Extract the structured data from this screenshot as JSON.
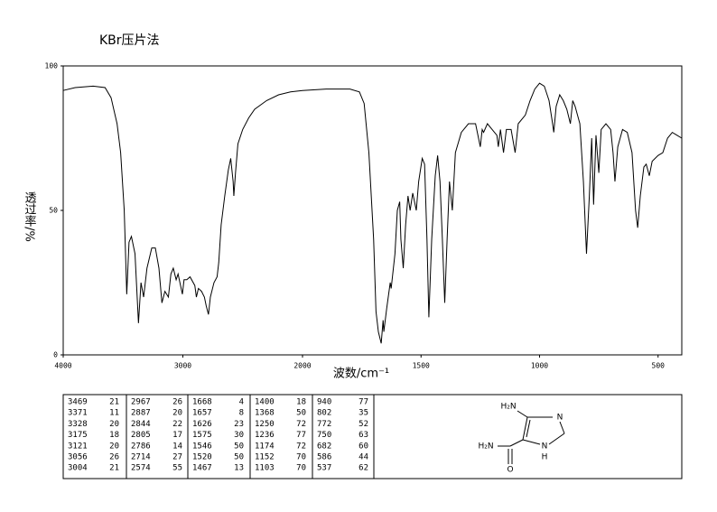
{
  "chart_data": {
    "type": "line",
    "title": "KBr压片法",
    "x_label": "波数/cm⁻¹",
    "y_label": "透过率/%",
    "xlim": [
      4000,
      400
    ],
    "xbreak": 2000,
    "ylim": [
      0,
      100
    ],
    "xticks": [
      4000,
      3000,
      2000,
      1500,
      1000,
      500
    ],
    "yticks": [
      0,
      50,
      100
    ],
    "color": "#000000",
    "x": [
      4000,
      3900,
      3750,
      3650,
      3600,
      3550,
      3520,
      3490,
      3469,
      3450,
      3430,
      3400,
      3371,
      3350,
      3328,
      3300,
      3260,
      3230,
      3200,
      3175,
      3150,
      3121,
      3100,
      3080,
      3056,
      3040,
      3004,
      2990,
      2967,
      2940,
      2900,
      2887,
      2870,
      2844,
      2820,
      2805,
      2786,
      2770,
      2740,
      2714,
      2700,
      2680,
      2650,
      2620,
      2600,
      2580,
      2574,
      2560,
      2540,
      2500,
      2450,
      2400,
      2300,
      2200,
      2100,
      2000,
      1900,
      1800,
      1760,
      1740,
      1720,
      1700,
      1690,
      1680,
      1668,
      1660,
      1657,
      1645,
      1630,
      1626,
      1610,
      1600,
      1590,
      1585,
      1575,
      1565,
      1555,
      1546,
      1535,
      1520,
      1510,
      1495,
      1485,
      1475,
      1467,
      1455,
      1440,
      1430,
      1420,
      1410,
      1400,
      1390,
      1380,
      1368,
      1355,
      1330,
      1300,
      1270,
      1250,
      1242,
      1236,
      1220,
      1200,
      1180,
      1174,
      1165,
      1152,
      1140,
      1120,
      1103,
      1090,
      1060,
      1040,
      1020,
      1000,
      980,
      960,
      945,
      940,
      930,
      915,
      900,
      885,
      870,
      860,
      850,
      830,
      815,
      802,
      790,
      780,
      772,
      762,
      750,
      740,
      720,
      700,
      690,
      682,
      670,
      650,
      630,
      610,
      595,
      586,
      575,
      560,
      550,
      537,
      525,
      500,
      480,
      460,
      440,
      420,
      400
    ],
    "values": [
      91.5,
      92.5,
      93,
      92.5,
      89,
      80,
      70,
      50,
      21,
      39,
      41,
      35,
      11,
      25,
      20,
      30,
      37,
      37,
      30,
      18,
      22,
      20,
      28,
      30,
      26,
      28,
      21,
      26,
      26,
      27,
      24,
      20,
      23,
      22,
      20,
      17,
      14,
      20,
      25,
      27,
      32,
      45,
      55,
      64,
      68,
      60,
      55,
      63,
      73,
      78,
      82,
      85,
      88,
      90,
      91,
      91.5,
      92,
      92,
      91,
      87,
      70,
      40,
      15,
      8,
      4,
      12,
      8,
      16,
      25,
      23,
      35,
      50,
      53,
      40,
      30,
      45,
      55,
      50,
      56,
      50,
      60,
      68,
      66,
      40,
      13,
      40,
      62,
      69,
      60,
      40,
      18,
      40,
      60,
      50,
      70,
      77,
      80,
      80,
      72,
      78,
      77,
      80,
      78,
      76,
      72,
      78,
      70,
      78,
      78,
      70,
      80,
      83,
      88,
      92,
      94,
      93,
      88,
      80,
      77,
      86,
      90,
      88,
      85,
      80,
      88,
      86,
      80,
      60,
      35,
      55,
      75,
      52,
      76,
      63,
      78,
      80,
      78,
      70,
      60,
      72,
      78,
      77,
      70,
      50,
      44,
      55,
      65,
      66,
      62,
      67,
      69,
      70,
      75,
      77,
      76,
      75
    ]
  },
  "peak_table": {
    "columns": [
      [
        [
          3469,
          21
        ],
        [
          3371,
          11
        ],
        [
          3328,
          20
        ],
        [
          3175,
          18
        ],
        [
          3121,
          20
        ],
        [
          3056,
          26
        ],
        [
          3004,
          21
        ]
      ],
      [
        [
          2967,
          26
        ],
        [
          2887,
          20
        ],
        [
          2844,
          22
        ],
        [
          2805,
          17
        ],
        [
          2786,
          14
        ],
        [
          2714,
          27
        ],
        [
          2574,
          55
        ]
      ],
      [
        [
          1668,
          4
        ],
        [
          1657,
          8
        ],
        [
          1626,
          23
        ],
        [
          1575,
          30
        ],
        [
          1546,
          50
        ],
        [
          1520,
          50
        ],
        [
          1467,
          13
        ]
      ],
      [
        [
          1400,
          18
        ],
        [
          1368,
          50
        ],
        [
          1250,
          72
        ],
        [
          1236,
          77
        ],
        [
          1174,
          72
        ],
        [
          1152,
          70
        ],
        [
          1103,
          70
        ]
      ],
      [
        [
          940,
          77
        ],
        [
          802,
          35
        ],
        [
          772,
          52
        ],
        [
          750,
          63
        ],
        [
          682,
          60
        ],
        [
          586,
          44
        ],
        [
          537,
          62
        ]
      ]
    ]
  },
  "structure_labels": {
    "amino": "H₂N",
    "n3": "N",
    "amide_n": "H₂N",
    "oxygen": "O",
    "n1": "N",
    "n1_h": "H"
  }
}
